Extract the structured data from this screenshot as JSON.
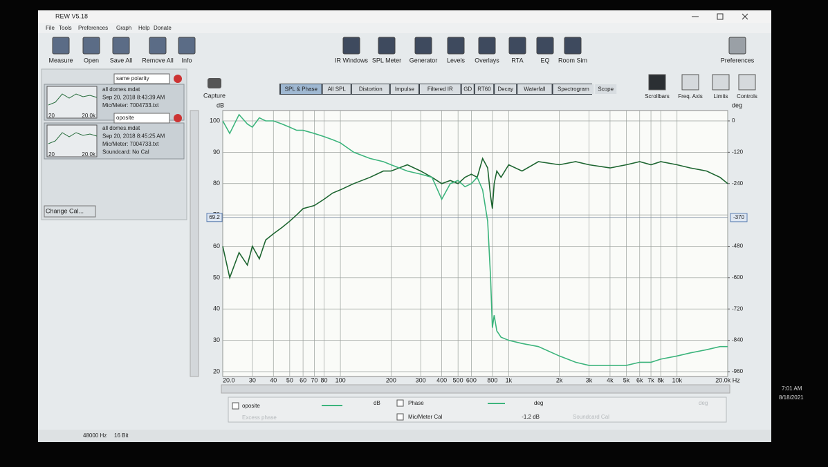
{
  "window": {
    "title": "REW V5.18",
    "menu": [
      "File",
      "Tools",
      "Preferences",
      "Graph",
      "Help",
      "Donate"
    ]
  },
  "toolbar": {
    "left": [
      "Measure",
      "Open",
      "Save All",
      "Remove All",
      "Info"
    ],
    "center": [
      "IR Windows",
      "SPL Meter",
      "Generator",
      "Levels",
      "Overlays",
      "RTA",
      "EQ",
      "Room Sim"
    ],
    "right": [
      "Preferences"
    ]
  },
  "graph_toolbar": {
    "capture": "Capture",
    "tabs": [
      "SPL & Phase",
      "All SPL",
      "Distortion",
      "Impulse",
      "Filtered IR",
      "GD",
      "RT60",
      "Decay",
      "Waterfall",
      "Spectrogram",
      "Scope"
    ],
    "controls": [
      "Scrollbars",
      "Freq. Axis",
      "Limits",
      "Controls"
    ]
  },
  "measurements": {
    "axis": [
      "20",
      "20.0k"
    ],
    "items": [
      {
        "name": "same polarity",
        "lines": [
          "all domes.mdat",
          "Sep 20, 2018 8:43:39 AM",
          "Mic/Meter: 7004733.txt"
        ]
      },
      {
        "name": "oposite",
        "lines": [
          "all domes.mdat",
          "Sep 20, 2018 8:45:25 AM",
          "Mic/Meter: 7004733.txt",
          "Soundcard: No Cal"
        ]
      }
    ],
    "change_cal": "Change Cal..."
  },
  "legend_panel": [
    "oposite",
    "dB",
    "Phase",
    "deg",
    "Excess phase",
    "Mic/Meter Cal",
    "-1.2 dB",
    "Soundcard Cal",
    "deg"
  ],
  "status_bar": [
    "48000 Hz",
    "16 Bit"
  ],
  "taskbar": {
    "time": "7:01 AM",
    "date": "8/18/2021"
  },
  "chart_data": {
    "type": "line",
    "ylabel": "dB",
    "y2label": "deg",
    "log_x": true,
    "grid": true,
    "xlim": [
      20,
      20000
    ],
    "ylim": [
      20,
      100
    ],
    "y2lim": [
      -960,
      0
    ],
    "xticks": [
      {
        "value": 20,
        "label": "20.0"
      },
      30,
      40,
      50,
      60,
      70,
      80,
      100,
      200,
      300,
      400,
      500,
      600,
      800,
      {
        "value": 1000,
        "label": "1k"
      },
      {
        "value": 2000,
        "label": "2k"
      },
      {
        "value": 3000,
        "label": "3k"
      },
      {
        "value": 4000,
        "label": "4k"
      },
      {
        "value": 5000,
        "label": "5k"
      },
      {
        "value": 6000,
        "label": "6k"
      },
      {
        "value": 7000,
        "label": "7k"
      },
      {
        "value": 8000,
        "label": "8k"
      },
      {
        "value": 10000,
        "label": "10k"
      },
      {
        "value": 20000,
        "label": "20.0k Hz"
      }
    ],
    "yticks": [
      20,
      30,
      40,
      50,
      60,
      70,
      80,
      90,
      100
    ],
    "y2ticks": [
      0,
      -120,
      -240,
      -480,
      -600,
      -720,
      -840,
      -960
    ],
    "cursor": {
      "y": 69.2,
      "y2": -370
    },
    "x": [
      20,
      22,
      25,
      28,
      30,
      33,
      36,
      40,
      45,
      50,
      55,
      60,
      70,
      80,
      90,
      100,
      120,
      150,
      180,
      200,
      250,
      300,
      350,
      400,
      450,
      500,
      550,
      600,
      650,
      700,
      750,
      780,
      800,
      820,
      850,
      900,
      1000,
      1200,
      1500,
      2000,
      2500,
      3000,
      4000,
      5000,
      6000,
      7000,
      8000,
      10000,
      12000,
      15000,
      18000,
      20000
    ],
    "series": [
      {
        "name": "same polarity",
        "color": "#1d6530",
        "values": [
          60,
          50,
          58,
          54,
          60,
          56,
          62,
          64,
          66,
          68,
          70,
          72,
          73,
          75,
          77,
          78,
          80,
          82,
          84,
          84,
          86,
          84,
          82,
          80,
          81,
          80,
          82,
          83,
          82,
          88,
          85,
          76,
          72,
          80,
          84,
          82,
          86,
          84,
          87,
          86,
          87,
          86,
          85,
          86,
          87,
          86,
          87,
          86,
          85,
          84,
          82,
          80
        ]
      },
      {
        "name": "oposite",
        "color": "#3cb47c",
        "values": [
          100,
          96,
          102,
          99,
          98,
          101,
          100,
          100,
          99,
          98,
          97,
          97,
          96,
          95,
          94,
          93,
          90,
          88,
          87,
          86,
          84,
          83,
          82,
          75,
          80,
          81,
          79,
          80,
          82,
          78,
          68,
          50,
          34,
          38,
          33,
          31,
          30,
          29,
          28,
          25,
          23,
          22,
          22,
          22,
          23,
          23,
          24,
          25,
          26,
          27,
          28,
          28
        ]
      }
    ]
  }
}
